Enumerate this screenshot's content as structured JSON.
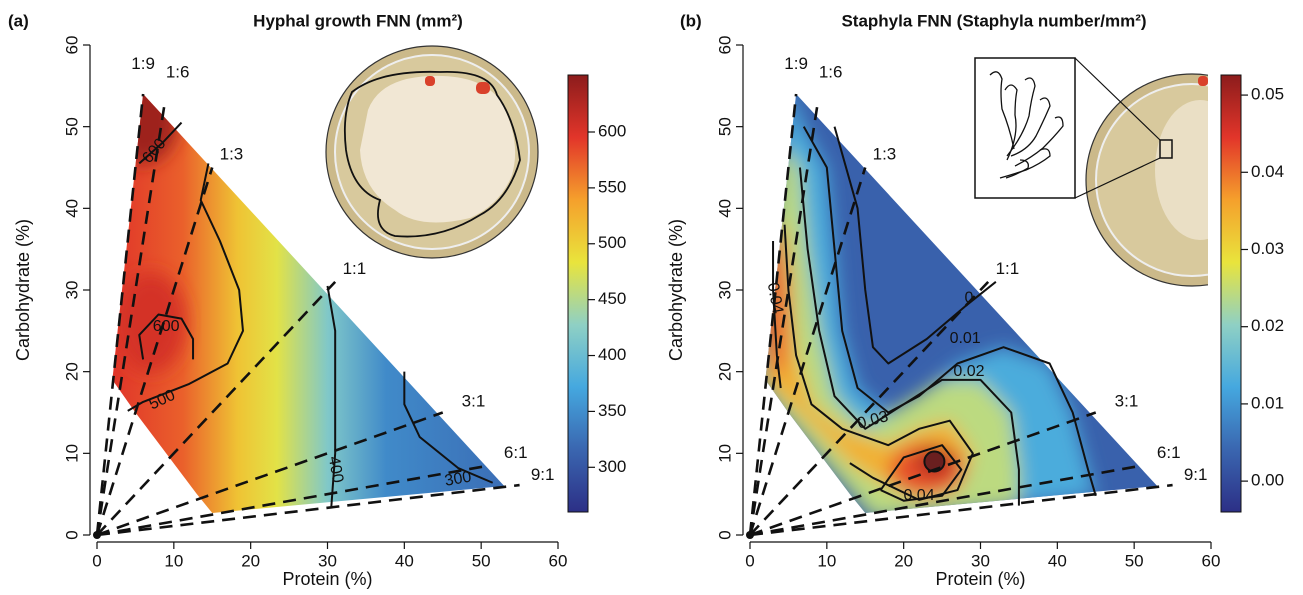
{
  "chart_data": [
    {
      "type": "contour",
      "panel_label": "(a)",
      "title": "Hyphal growth FNN (mm²)",
      "xlabel": "Protein (%)",
      "ylabel": "Carbohydrate (%)",
      "xlim": [
        0,
        60
      ],
      "ylim": [
        0,
        60
      ],
      "xticks": [
        0,
        10,
        20,
        30,
        40,
        50,
        60
      ],
      "yticks": [
        0,
        10,
        20,
        30,
        40,
        50,
        60
      ],
      "ratio_lines": [
        {
          "label": "1:9",
          "protein": 1,
          "carbohydrate": 9
        },
        {
          "label": "1:6",
          "protein": 1,
          "carbohydrate": 6
        },
        {
          "label": "1:3",
          "protein": 1,
          "carbohydrate": 3
        },
        {
          "label": "1:1",
          "protein": 1,
          "carbohydrate": 1
        },
        {
          "label": "3:1",
          "protein": 3,
          "carbohydrate": 1
        },
        {
          "label": "6:1",
          "protein": 6,
          "carbohydrate": 1
        },
        {
          "label": "9:1",
          "protein": 9,
          "carbohydrate": 1
        }
      ],
      "contour_labels": [
        600,
        600,
        500,
        400,
        300
      ],
      "colorbar_lim": [
        260,
        651
      ],
      "colorbar_ticks": [
        300,
        350,
        400,
        450,
        500,
        550,
        600
      ],
      "colorbar_colors": [
        "#2c2f86",
        "#3a66b0",
        "#45a8df",
        "#8fd0c4",
        "#e9e43c",
        "#f5a02c",
        "#e2352a",
        "#8c1c1c"
      ]
    },
    {
      "type": "contour",
      "panel_label": "(b)",
      "title": "Staphyla FNN (Staphyla number/mm²)",
      "xlabel": "Protein (%)",
      "ylabel": "Carbohydrate (%)",
      "xlim": [
        0,
        60
      ],
      "ylim": [
        0,
        60
      ],
      "xticks": [
        0,
        10,
        20,
        30,
        40,
        50,
        60
      ],
      "yticks": [
        0,
        10,
        20,
        30,
        40,
        50,
        60
      ],
      "ratio_lines": [
        {
          "label": "1:9",
          "protein": 1,
          "carbohydrate": 9
        },
        {
          "label": "1:6",
          "protein": 1,
          "carbohydrate": 6
        },
        {
          "label": "1:3",
          "protein": 1,
          "carbohydrate": 3
        },
        {
          "label": "1:1",
          "protein": 1,
          "carbohydrate": 1
        },
        {
          "label": "3:1",
          "protein": 3,
          "carbohydrate": 1
        },
        {
          "label": "6:1",
          "protein": 6,
          "carbohydrate": 1
        },
        {
          "label": "9:1",
          "protein": 9,
          "carbohydrate": 1
        }
      ],
      "contour_labels": [
        0.04,
        0,
        0.01,
        0.02,
        0.03,
        0.04
      ],
      "colorbar_lim": [
        -0.004,
        0.0526
      ],
      "colorbar_ticks": [
        {
          "value": 0,
          "label": "0.00"
        },
        0.01,
        0.02,
        0.03,
        0.04,
        0.05
      ],
      "colorbar_colors": [
        "#2c2f86",
        "#3a66b0",
        "#45a8df",
        "#8fd0c4",
        "#e9e43c",
        "#f5a02c",
        "#e2352a",
        "#8c1c1c"
      ]
    }
  ]
}
